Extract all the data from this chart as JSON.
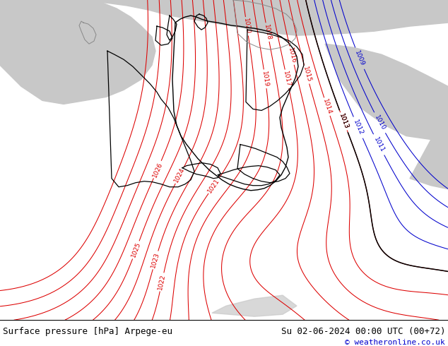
{
  "title_left": "Surface pressure [hPa] Arpege-eu",
  "title_right": "Su 02-06-2024 00:00 UTC (00+72)",
  "copyright": "© weatheronline.co.uk",
  "land_green": "#b0e07a",
  "sea_gray": "#c8c8c8",
  "isobar_red": "#dd0000",
  "isobar_blue": "#0000cc",
  "isobar_black": "#000000",
  "border_dark": "#000000",
  "border_light": "#888888",
  "footer_bg": "#ffffff",
  "footer_text": "#000000",
  "copyright_color": "#0000cc",
  "font_size_footer": 9,
  "figsize": [
    6.34,
    4.9
  ],
  "dpi": 100
}
